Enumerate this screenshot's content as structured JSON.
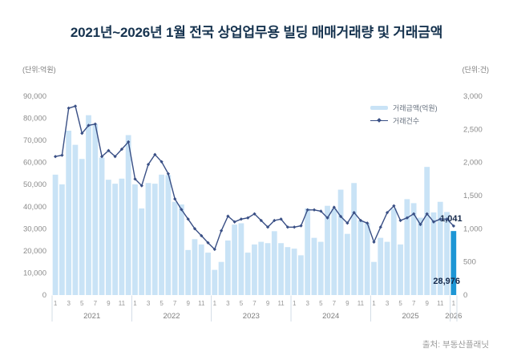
{
  "title": "2021년~2026년 1월 전국 상업업무용 빌딩 매매거래량 및 거래금액",
  "units": {
    "left": "(단위:억원)",
    "right": "(단위:건)"
  },
  "legend": {
    "amount_label": "거래금액(억원)",
    "count_label": "거래건수"
  },
  "source": "출처: 부동산플래닛",
  "colors": {
    "bar": "#c9e3f6",
    "bar_highlight": "#1d96d5",
    "line": "#394f85",
    "separator": "#c8d4e0",
    "annotation": "#15294b"
  },
  "chart_data": {
    "type": "combo-bar-line",
    "title": "2021년~2026년 1월 전국 상업업무용 빌딩 매매거래량 및 거래금액",
    "grid": false,
    "legend_position": "top-right",
    "x_years": [
      {
        "label": "2021",
        "months": 12
      },
      {
        "label": "2022",
        "months": 12
      },
      {
        "label": "2023",
        "months": 12
      },
      {
        "label": "2024",
        "months": 12
      },
      {
        "label": "2025",
        "months": 12
      },
      {
        "label": "2026",
        "months": 1
      }
    ],
    "month_tick_labels": [
      "1",
      "3",
      "5",
      "7",
      "9",
      "11"
    ],
    "left_axis": {
      "unit": "(단위:억원)",
      "min": 0,
      "max": 90000,
      "tick_step": 10000
    },
    "right_axis": {
      "unit": "(단위:건)",
      "min": 0,
      "max": 3000,
      "tick_step": 500
    },
    "highlight_index": 60,
    "series": [
      {
        "name": "거래금액(억원)",
        "type": "bar",
        "axis": "left",
        "values": [
          54500,
          50100,
          74400,
          68000,
          61600,
          81400,
          77400,
          62200,
          52200,
          50400,
          52700,
          72400,
          50100,
          39200,
          50700,
          50400,
          54500,
          54300,
          42200,
          41000,
          20400,
          25300,
          22900,
          19200,
          11400,
          15000,
          24700,
          31900,
          32500,
          19200,
          22900,
          24100,
          23500,
          28900,
          23500,
          21700,
          21000,
          18000,
          39200,
          25900,
          24100,
          40400,
          39200,
          47700,
          27700,
          50700,
          33800,
          32500,
          15000,
          25900,
          24100,
          39200,
          22900,
          43400,
          41600,
          35000,
          58000,
          37400,
          42200,
          37600,
          28976
        ]
      },
      {
        "name": "거래건수",
        "type": "line",
        "axis": "right",
        "values": [
          2090,
          2110,
          2820,
          2850,
          2440,
          2560,
          2580,
          2090,
          2180,
          2090,
          2200,
          2310,
          1750,
          1650,
          1970,
          2120,
          2010,
          1830,
          1450,
          1290,
          1145,
          1000,
          895,
          790,
          690,
          970,
          1190,
          1105,
          1145,
          1165,
          1225,
          1125,
          1025,
          1125,
          1145,
          1025,
          1025,
          1045,
          1285,
          1285,
          1265,
          1165,
          1325,
          1185,
          1085,
          1245,
          1125,
          1085,
          800,
          1025,
          1245,
          1345,
          1125,
          1165,
          1225,
          1065,
          1225,
          1105,
          1145,
          1145,
          1041
        ]
      }
    ],
    "annotations": [
      {
        "text": "1,041",
        "series": "거래건수",
        "index": 60
      },
      {
        "text": "28,976",
        "series": "거래금액(억원)",
        "index": 60
      }
    ]
  }
}
